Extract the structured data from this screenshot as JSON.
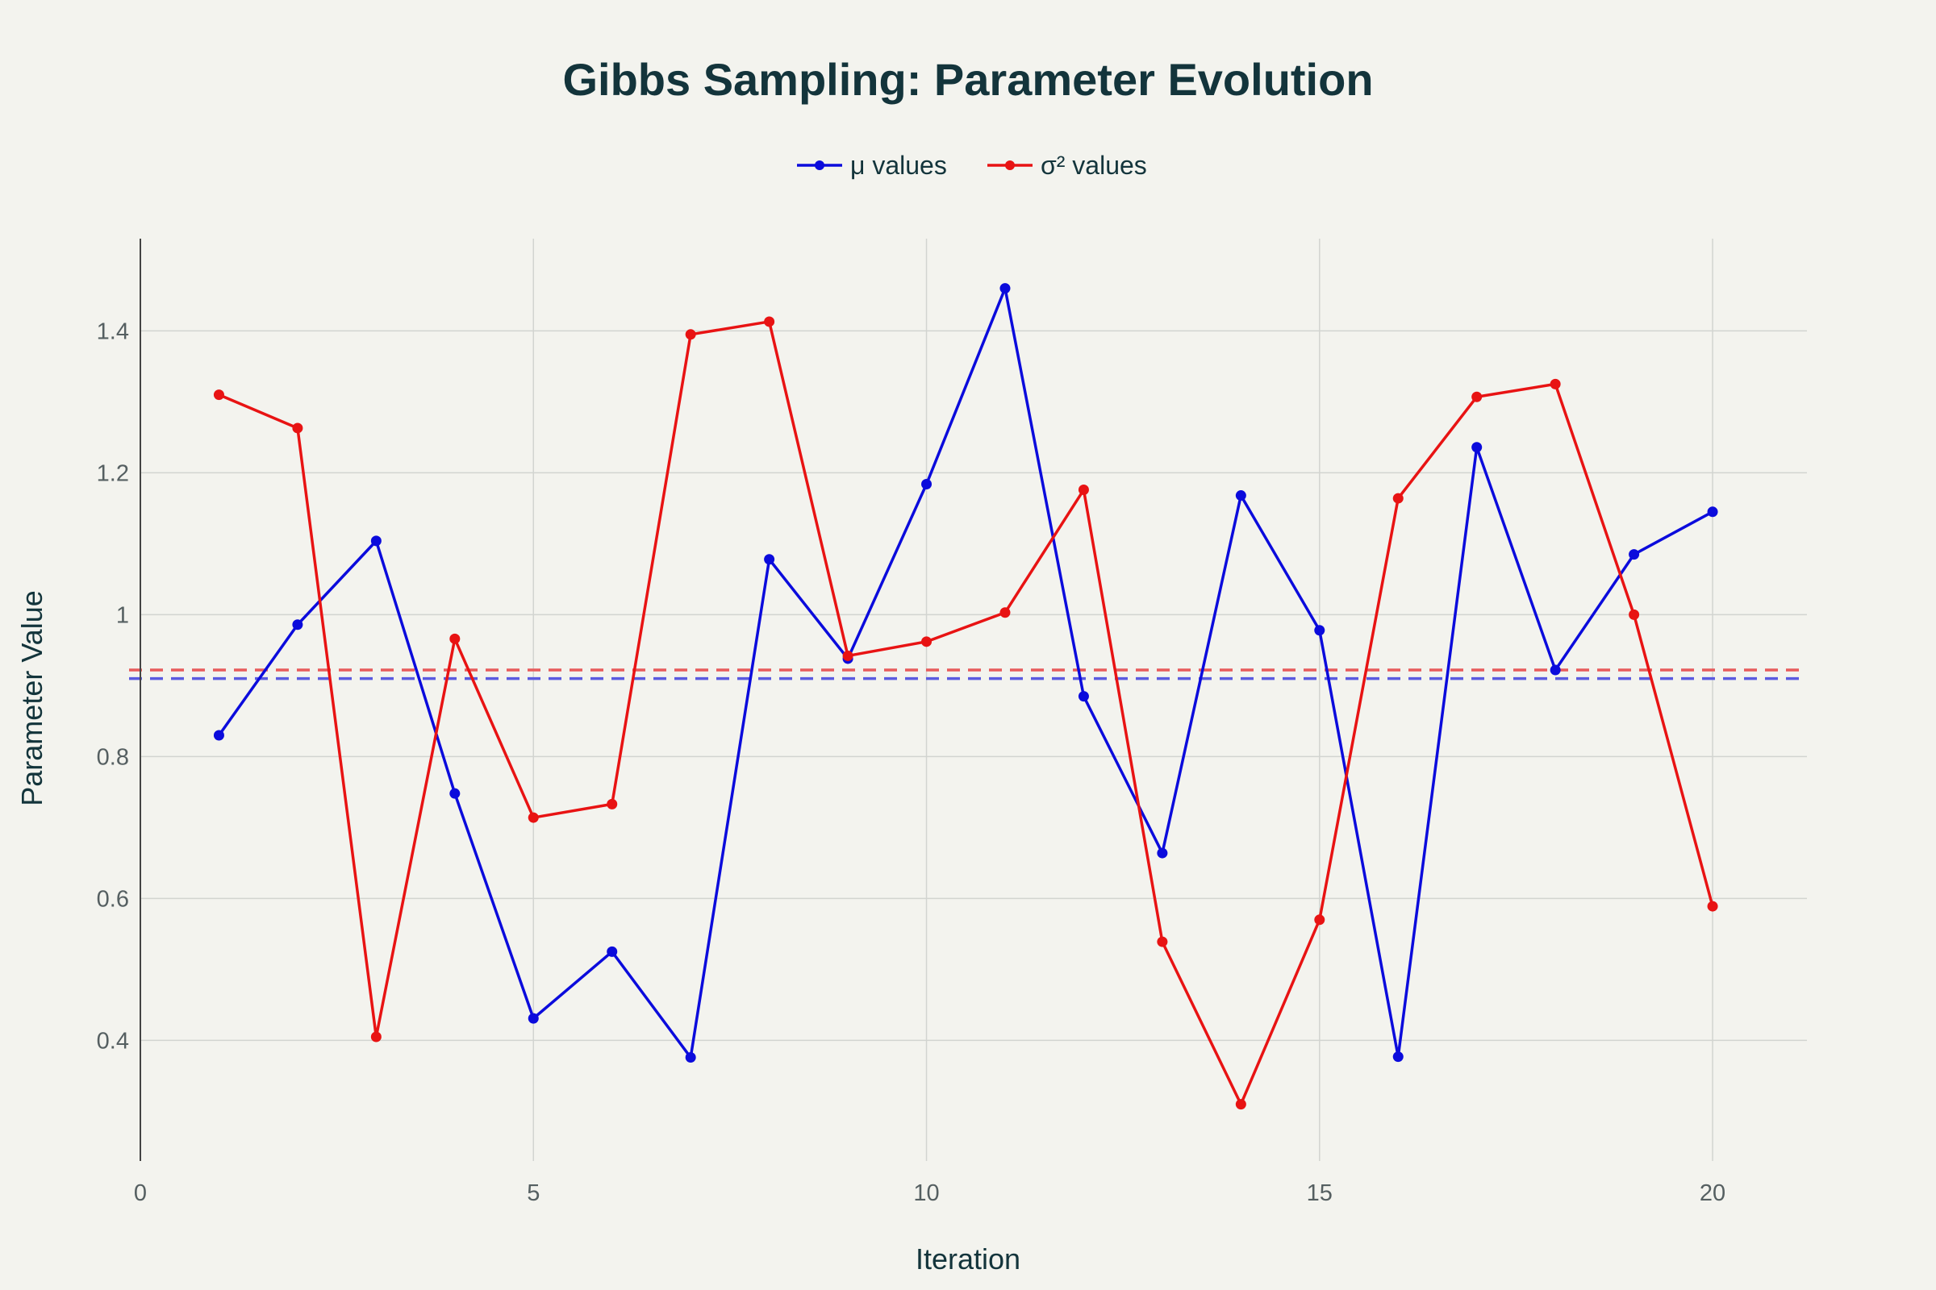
{
  "chart_data": {
    "type": "line",
    "title": "Gibbs Sampling: Parameter Evolution",
    "xlabel": "Iteration",
    "ylabel": "Parameter Value",
    "xlim": [
      0,
      21.2
    ],
    "ylim": [
      0.23,
      1.53
    ],
    "x_ticks": [
      0,
      5,
      10,
      15,
      20
    ],
    "x_tick_labels": [
      "0",
      "5",
      "10",
      "15",
      "20"
    ],
    "y_ticks": [
      0.4,
      0.6,
      0.8,
      1.0,
      1.2,
      1.4
    ],
    "y_tick_labels": [
      "0.4",
      "0.6",
      "0.8",
      "1",
      "1.2",
      "1.4"
    ],
    "grid": true,
    "legend_position": "top-center",
    "x": [
      1,
      2,
      3,
      4,
      5,
      6,
      7,
      8,
      9,
      10,
      11,
      12,
      13,
      14,
      15,
      16,
      17,
      18,
      19,
      20
    ],
    "series": [
      {
        "name": "μ values",
        "color": "#0b0bdc",
        "values": [
          0.83,
          0.986,
          1.104,
          0.748,
          0.431,
          0.525,
          0.376,
          1.078,
          0.938,
          1.184,
          1.46,
          0.885,
          0.664,
          1.168,
          0.978,
          0.377,
          1.236,
          0.922,
          1.085,
          1.145
        ]
      },
      {
        "name": "σ² values",
        "color": "#e81313",
        "values": [
          1.31,
          1.263,
          0.405,
          0.966,
          0.714,
          0.733,
          1.395,
          1.413,
          0.942,
          0.962,
          1.003,
          1.176,
          0.539,
          0.31,
          0.57,
          1.164,
          1.307,
          1.325,
          1.0,
          0.589
        ]
      }
    ],
    "reference_lines": [
      {
        "series": "σ² values",
        "y": 0.922,
        "color": "#e85b5b",
        "style": "dashed"
      },
      {
        "series": "μ values",
        "y": 0.91,
        "color": "#5a5ae0",
        "style": "dashed"
      }
    ]
  }
}
